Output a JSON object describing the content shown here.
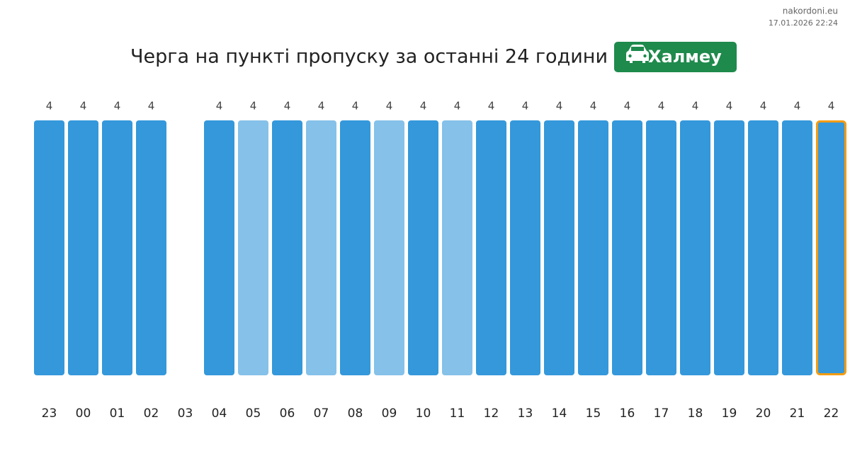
{
  "chart_data": {
    "type": "bar",
    "title": "Черга на пункті пропуску за останні 24 години",
    "badge": "Халмеу",
    "source": "nakordoni.eu",
    "date": "17.01.2026 22:24",
    "categories": [
      "23",
      "00",
      "01",
      "02",
      "03",
      "04",
      "05",
      "06",
      "07",
      "08",
      "09",
      "10",
      "11",
      "12",
      "13",
      "14",
      "15",
      "16",
      "17",
      "18",
      "19",
      "20",
      "21",
      "22"
    ],
    "values": [
      4,
      4,
      4,
      4,
      null,
      4,
      4,
      4,
      4,
      4,
      4,
      4,
      4,
      4,
      4,
      4,
      4,
      4,
      4,
      4,
      4,
      4,
      4,
      4
    ],
    "colors": [
      "#3498db",
      "#3498db",
      "#3498db",
      "#3498db",
      "#3498db",
      "#3498db",
      "#85c1e9",
      "#3498db",
      "#85c1e9",
      "#3498db",
      "#85c1e9",
      "#3498db",
      "#85c1e9",
      "#3498db",
      "#3498db",
      "#3498db",
      "#3498db",
      "#3498db",
      "#3498db",
      "#3498db",
      "#3498db",
      "#3498db",
      "#3498db",
      "#3498db"
    ],
    "highlight_category": "22",
    "highlight_color": "#f39c12",
    "badge_color": "#1e8a4c"
  }
}
